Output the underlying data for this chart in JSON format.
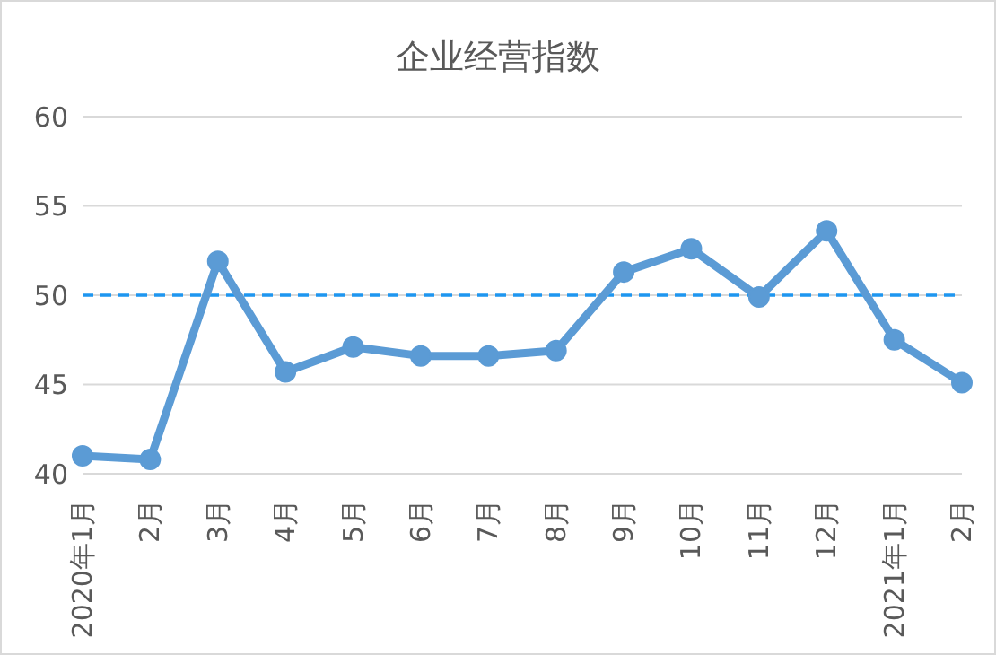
{
  "chart_data": {
    "type": "line",
    "title": "企业经营指数",
    "categories": [
      "2020年1月",
      "2月",
      "3月",
      "4月",
      "5月",
      "6月",
      "7月",
      "8月",
      "9月",
      "10月",
      "11月",
      "12月",
      "2021年1月",
      "2月"
    ],
    "series": [
      {
        "color": "#5b9bd5",
        "values": [
          41.0,
          40.8,
          51.9,
          45.7,
          47.1,
          46.6,
          46.6,
          46.9,
          51.3,
          52.6,
          49.9,
          53.6,
          47.5,
          45.1
        ]
      }
    ],
    "ylim": [
      40,
      60
    ],
    "yticks": [
      40,
      45,
      50,
      55,
      60
    ],
    "grid": "y",
    "legend": false,
    "marker": "circle",
    "line_style": "solid",
    "ref_lines": [
      {
        "axis": "y",
        "value": 50,
        "color": "#1e96f0",
        "line_style": "dashed"
      }
    ]
  }
}
